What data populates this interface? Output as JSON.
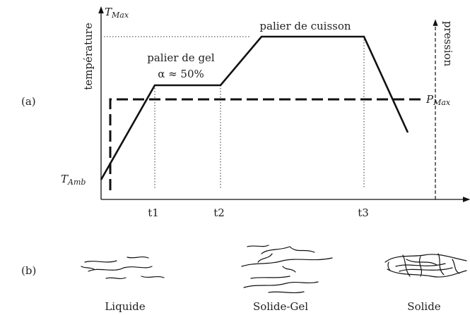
{
  "panel_a": {
    "label": "(a)",
    "y_axis_label": "température",
    "y2_axis_label": "pression",
    "t_max": {
      "main": "T",
      "sub": "Max"
    },
    "t_amb": {
      "main": "T",
      "sub": "Amb"
    },
    "p_max": {
      "main": "P",
      "sub": "Max"
    },
    "annotations": {
      "cure_plateau": "palier de cuisson",
      "gel_plateau": "palier de gel",
      "gel_degree": "α ≈ 50%"
    },
    "times": [
      "t1",
      "t2",
      "t3"
    ]
  },
  "panel_b": {
    "label": "(b)",
    "states": [
      "Liquide",
      "Solide-Gel",
      "Solide"
    ]
  }
}
